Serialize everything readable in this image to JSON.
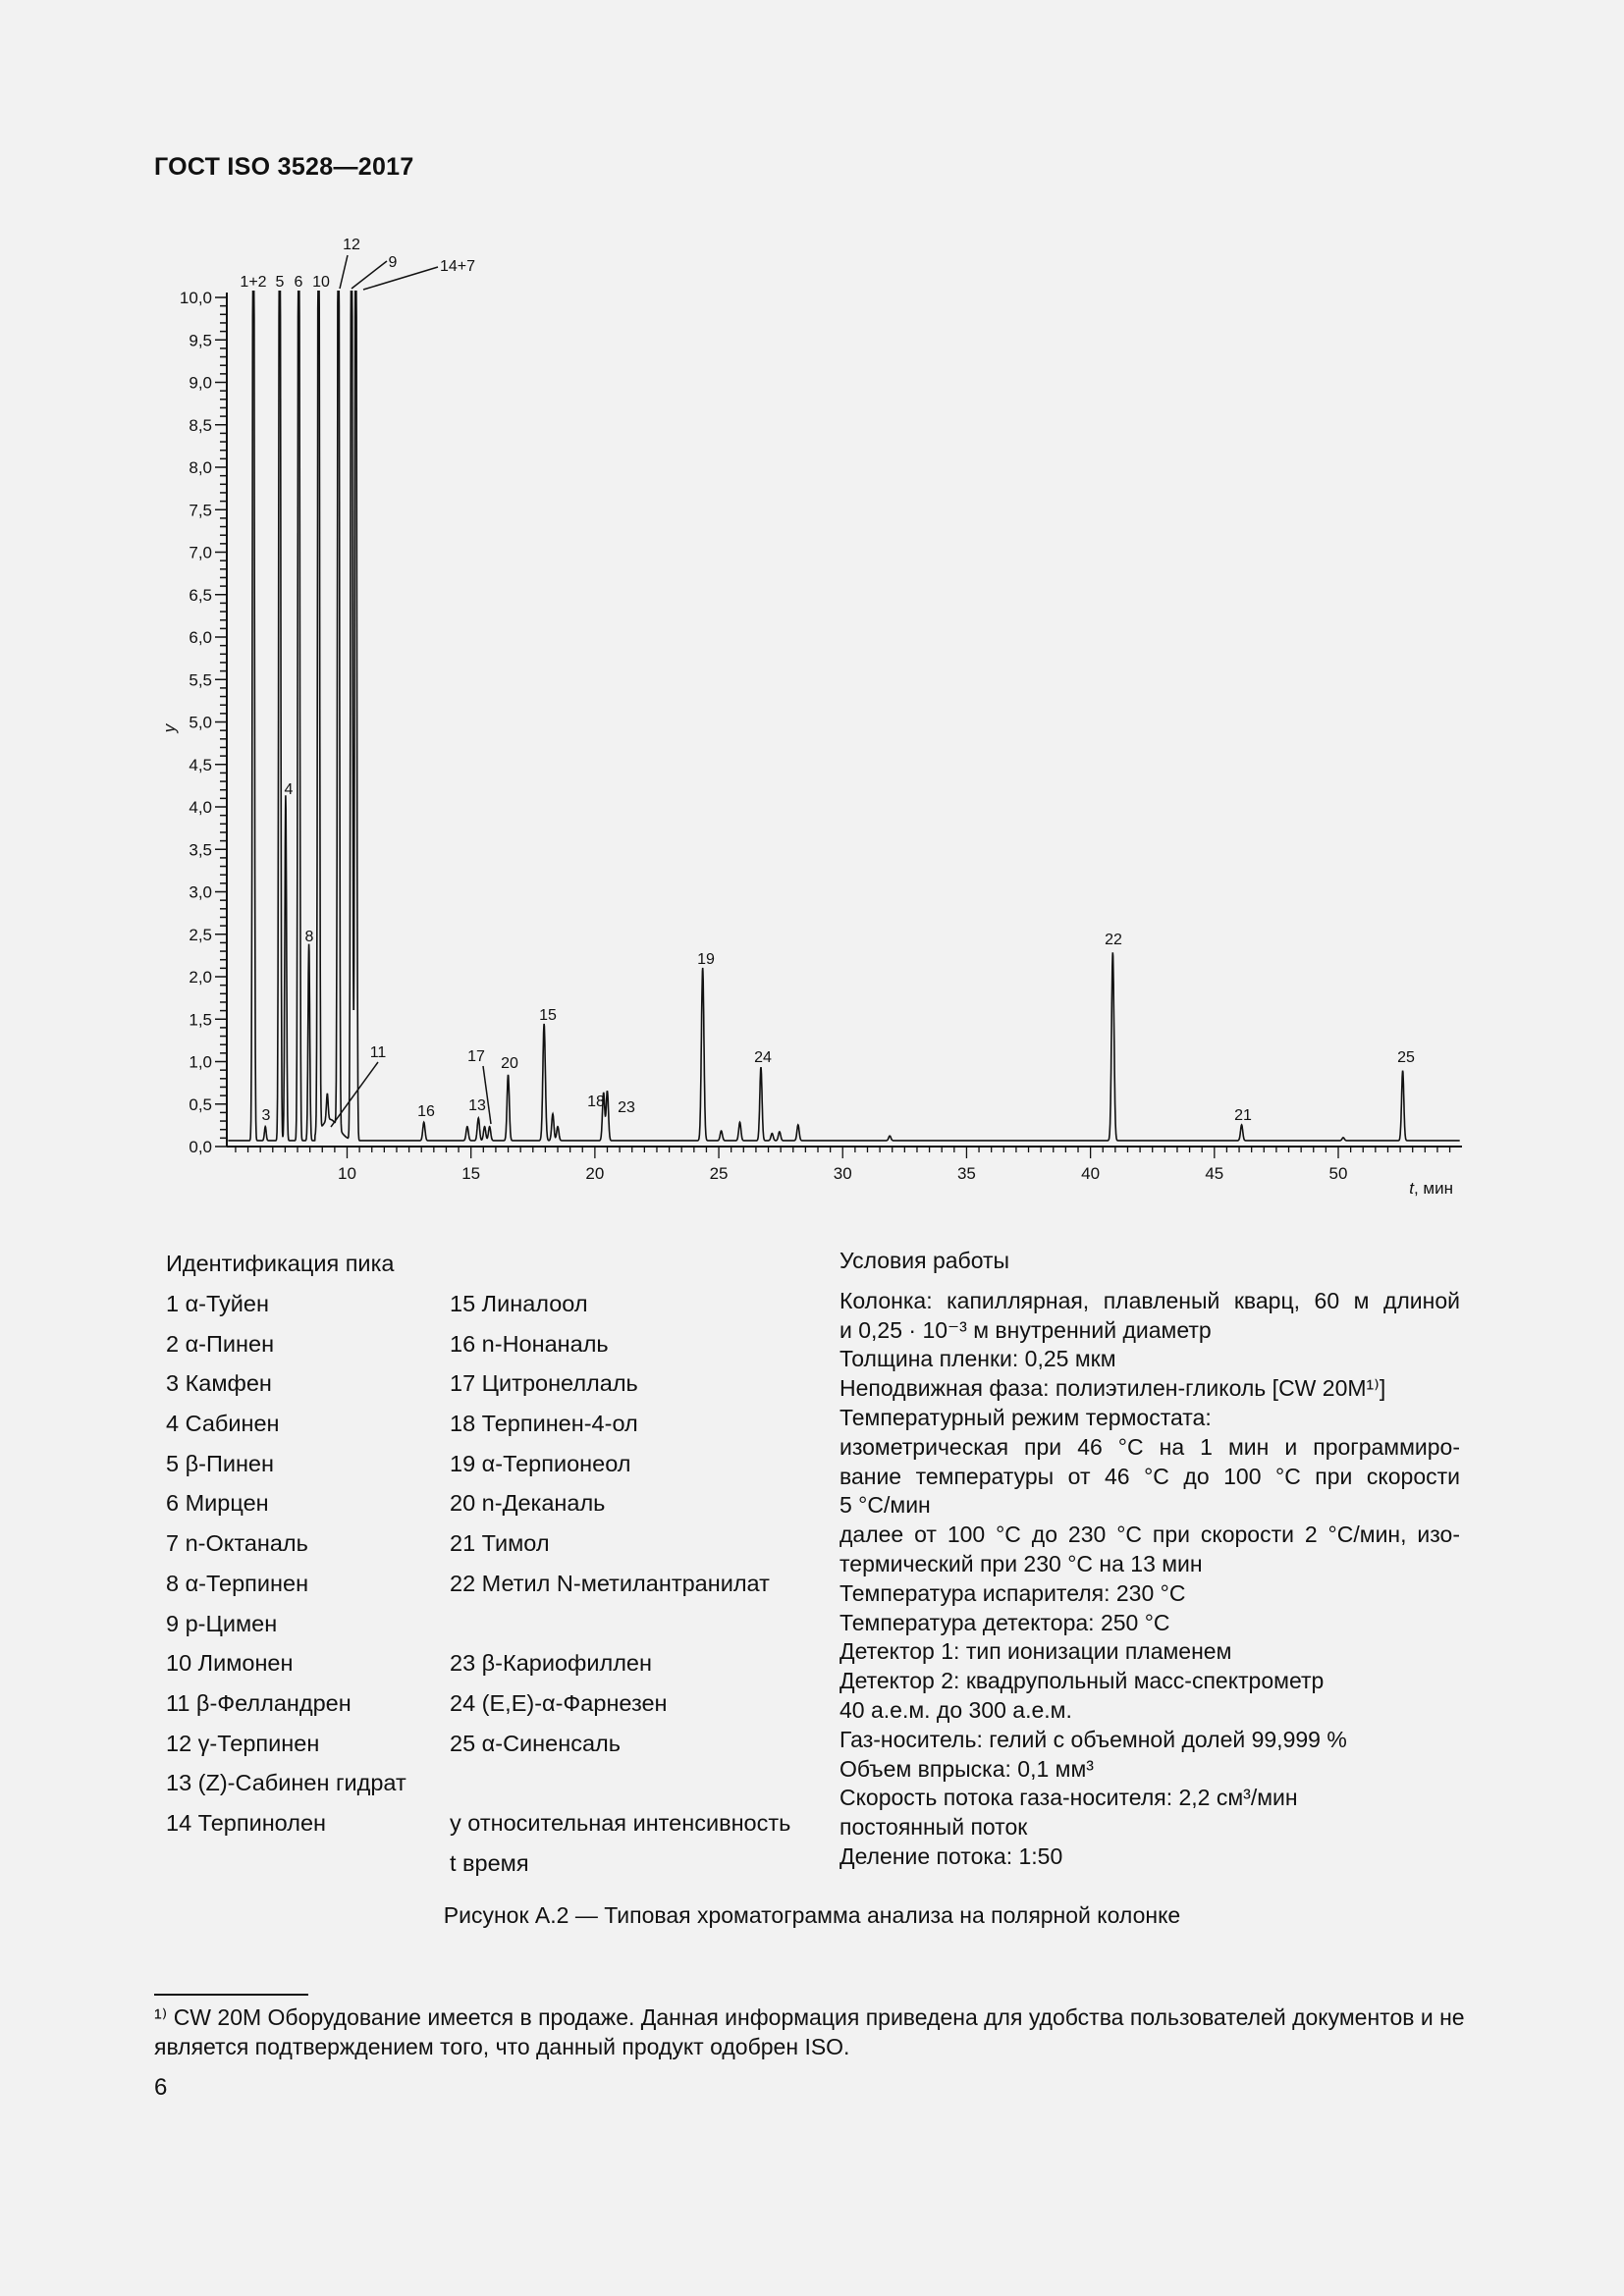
{
  "header": {
    "doc_title": "ГОСТ ISO 3528—2017"
  },
  "chart_data": {
    "type": "line",
    "title": "",
    "xlabel": "t, мин",
    "xlabel_var": "t",
    "xlabel_unit": ", мин",
    "ylabel": "y",
    "xlim": [
      5.2,
      54.9
    ],
    "ylim": [
      0,
      10
    ],
    "x_ticks": [
      "10",
      "15",
      "20",
      "25",
      "30",
      "35",
      "40",
      "45",
      "50"
    ],
    "y_ticks": [
      "0,0",
      "0,5",
      "1,0",
      "1,5",
      "2,0",
      "2,5",
      "3,0",
      "3,5",
      "4,0",
      "4,5",
      "5,0",
      "5,5",
      "6,0",
      "6,5",
      "7,0",
      "7,5",
      "8,0",
      "8,5",
      "9,0",
      "9,5",
      "10,0"
    ],
    "grid": false,
    "baseline": 0.07,
    "line_color": "#111111",
    "peaks": [
      {
        "label": "1+2",
        "t": 6.22,
        "y": 10,
        "clipped": true
      },
      {
        "label": "3",
        "t": 6.7,
        "y": 0.2
      },
      {
        "label": "5",
        "t": 7.28,
        "y": 10,
        "clipped": true
      },
      {
        "label": "4",
        "t": 7.52,
        "y": 4.1
      },
      {
        "label": "6",
        "t": 8.05,
        "y": 10,
        "clipped": true
      },
      {
        "label": "8",
        "t": 8.46,
        "y": 2.35
      },
      {
        "label": "10",
        "t": 8.85,
        "y": 10,
        "clipped": true
      },
      {
        "label": "11",
        "t": 9.2,
        "y": 0.35
      },
      {
        "label": "12",
        "t": 9.65,
        "y": 10,
        "clipped": true
      },
      {
        "label": "9",
        "t": 10.18,
        "y": 10,
        "clipped": true
      },
      {
        "label": "14+7",
        "t": 10.35,
        "y": 10,
        "clipped": true
      },
      {
        "label": "16",
        "t": 13.1,
        "y": 0.25
      },
      {
        "label": "",
        "t": 14.85,
        "y": 0.2
      },
      {
        "label": "13",
        "t": 15.3,
        "y": 0.3
      },
      {
        "label": "",
        "t": 15.55,
        "y": 0.2
      },
      {
        "label": "17",
        "t": 15.75,
        "y": 0.2
      },
      {
        "label": "20",
        "t": 16.5,
        "y": 0.81
      },
      {
        "label": "15",
        "t": 17.95,
        "y": 1.41
      },
      {
        "label": "",
        "t": 18.3,
        "y": 0.35
      },
      {
        "label": "",
        "t": 18.5,
        "y": 0.2
      },
      {
        "label": "18",
        "t": 20.35,
        "y": 0.6
      },
      {
        "label": "23",
        "t": 20.5,
        "y": 0.62
      },
      {
        "label": "19",
        "t": 24.35,
        "y": 2.07
      },
      {
        "label": "",
        "t": 25.1,
        "y": 0.15
      },
      {
        "label": "",
        "t": 25.85,
        "y": 0.25
      },
      {
        "label": "24",
        "t": 26.7,
        "y": 0.9
      },
      {
        "label": "",
        "t": 27.15,
        "y": 0.12
      },
      {
        "label": "",
        "t": 27.45,
        "y": 0.14
      },
      {
        "label": "",
        "t": 28.2,
        "y": 0.22
      },
      {
        "label": "",
        "t": 31.9,
        "y": 0.09
      },
      {
        "label": "22",
        "t": 40.9,
        "y": 2.25
      },
      {
        "label": "21",
        "t": 46.1,
        "y": 0.22
      },
      {
        "label": "",
        "t": 50.2,
        "y": 0.07
      },
      {
        "label": "25",
        "t": 52.6,
        "y": 0.86
      }
    ]
  },
  "legend": {
    "title": "Идентификация пика",
    "col1": [
      "1 α-Туйен",
      "2 α-Пинен",
      "3 Камфен",
      "4 Сабинен",
      "5 β-Пинен",
      "6 Мирцен",
      "7 n-Октаналь",
      "8 α-Терпинен",
      "9 p-Цимен",
      "10 Лимонен",
      "11 β-Фелландрен",
      "12 γ-Терпинен",
      "13 (Z)-Сабинен гидрат",
      "14 Терпинолен"
    ],
    "col2": [
      "15 Линалоол",
      "16 n-Нонаналь",
      "17 Цитронеллаль",
      "18 Терпинен-4-ол",
      "19 α-Терпионеол",
      "20 n-Деканаль",
      "21 Тимол",
      "22 Метил N-метилантранилат",
      "",
      "23 β-Кариофиллен",
      "24 (E,E)-α-Фарнезен",
      "25 α-Синенсаль",
      "",
      "y относительная интенсивность",
      "t время"
    ]
  },
  "conditions": {
    "title": "Условия работы",
    "lines": [
      "Колонка: капиллярная, плавленый кварц, 60 м длиной",
      "и 0,25 · 10⁻³ м внутренний диаметр",
      "Толщина пленки: 0,25 мкм",
      "Неподвижная фаза: полиэтилен-гликоль [CW 20M¹⁾]",
      "Температурный режим термостата:",
      "изометрическая при 46 °С на 1 мин и программиро-",
      "вание температуры от 46 °С до 100 °С при скорости",
      "5 °С/мин",
      "далее от 100 °С до 230 °С при скорости 2 °С/мин, изо-",
      "термический при 230 °С на 13 мин",
      "Температура испарителя: 230 °С",
      "Температура детектора: 250 °С",
      "Детектор 1:  тип ионизации пламенем",
      "Детектор 2:  квадрупольный масс-спектрометр",
      "40 а.е.м.  до 300 а.е.м.",
      "Газ-носитель: гелий с объемной долей 99,999 %",
      "Объем впрыска: 0,1 мм³",
      "Скорость потока газа-носителя: 2,2 см³/мин",
      "постоянный поток",
      "Деление потока:  1:50"
    ]
  },
  "caption": "Рисунок А.2 — Типовая хроматограмма анализа на полярной колонке",
  "footnote": "¹⁾ CW 20M Оборудование имеется в продаже. Данная информация приведена для удобства пользователей документов и не является подтверждением того, что данный продукт одобрен ISO.",
  "page_number": "6"
}
